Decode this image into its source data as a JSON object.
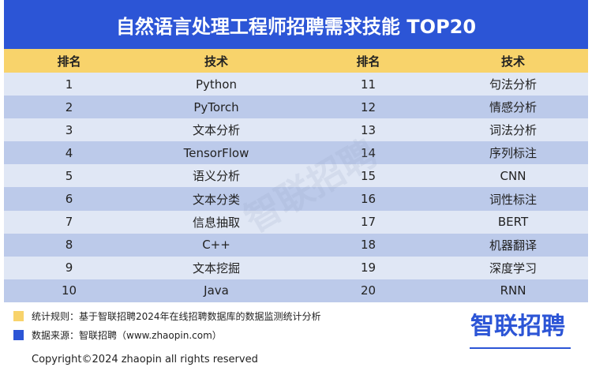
{
  "header": {
    "title": "自然语言处理工程师招聘需求技能 TOP20"
  },
  "table": {
    "header": [
      "排名",
      "技术",
      "排名",
      "技术"
    ],
    "rows": [
      [
        1,
        "Python",
        11,
        "句法分析"
      ],
      [
        2,
        "PyTorch",
        12,
        "情感分析"
      ],
      [
        3,
        "文本分析",
        13,
        "词法分析"
      ],
      [
        4,
        "TensorFlow",
        14,
        "序列标注"
      ],
      [
        5,
        "语义分析",
        15,
        "CNN"
      ],
      [
        6,
        "文本分类",
        16,
        "词性标注"
      ],
      [
        7,
        "信息抽取",
        17,
        "BERT"
      ],
      [
        8,
        "C++",
        18,
        "机器翻译"
      ],
      [
        9,
        "文本挖掘",
        19,
        "深度学习"
      ],
      [
        10,
        "Java",
        20,
        "RNN"
      ]
    ]
  },
  "watermark": "智联招聘",
  "notes": [
    "统计规则：基于智联招聘2024年在线招聘数据库的数据监测统计分析",
    "数据来源：智联招聘（www.zhaopin.com）"
  ],
  "logo": "智联招聘",
  "footer": {
    "copyright": "Copyright©2024 zhaopin all rights reserved"
  }
}
